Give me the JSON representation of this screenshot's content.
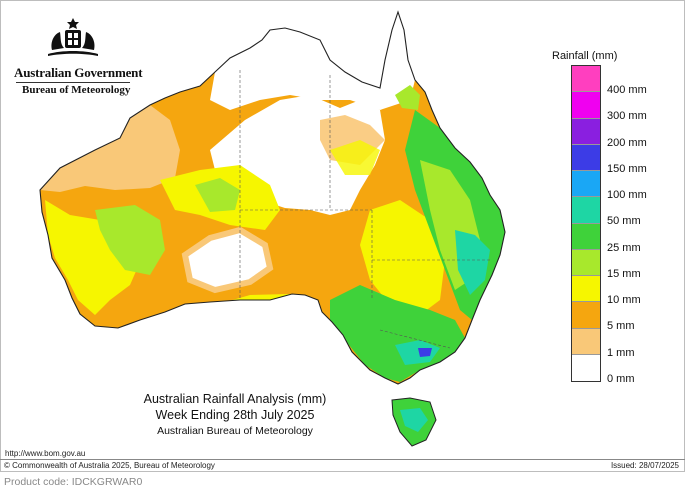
{
  "header": {
    "government": "Australian Government",
    "bureau": "Bureau of Meteorology"
  },
  "legend": {
    "title": "Rainfall (mm)",
    "items": [
      {
        "label": "400 mm",
        "color": "#ff3fbf"
      },
      {
        "label": "300 mm",
        "color": "#f000f0"
      },
      {
        "label": "200 mm",
        "color": "#8a1fe0"
      },
      {
        "label": "150 mm",
        "color": "#3c3ce6"
      },
      {
        "label": "100 mm",
        "color": "#1aa7f5"
      },
      {
        "label": "50 mm",
        "color": "#1ed6a4"
      },
      {
        "label": "25 mm",
        "color": "#3fd23a"
      },
      {
        "label": "15 mm",
        "color": "#a8e82c"
      },
      {
        "label": "10 mm",
        "color": "#f6f600"
      },
      {
        "label": "5 mm",
        "color": "#f5a60f"
      },
      {
        "label": "1 mm",
        "color": "#f9c878"
      },
      {
        "label": "0 mm",
        "color": "#ffffff"
      }
    ]
  },
  "map_title": {
    "line1": "Australian Rainfall Analysis (mm)",
    "line2": "Week Ending 28th July 2025",
    "line3": "Australian Bureau of Meteorology"
  },
  "footer": {
    "url": "http://www.bom.gov.au",
    "copyright": "© Commonwealth of Australia 2025, Bureau of Meteorology",
    "issued": "Issued: 28/07/2025",
    "product_code": "Product code: IDCKGRWAR0"
  }
}
